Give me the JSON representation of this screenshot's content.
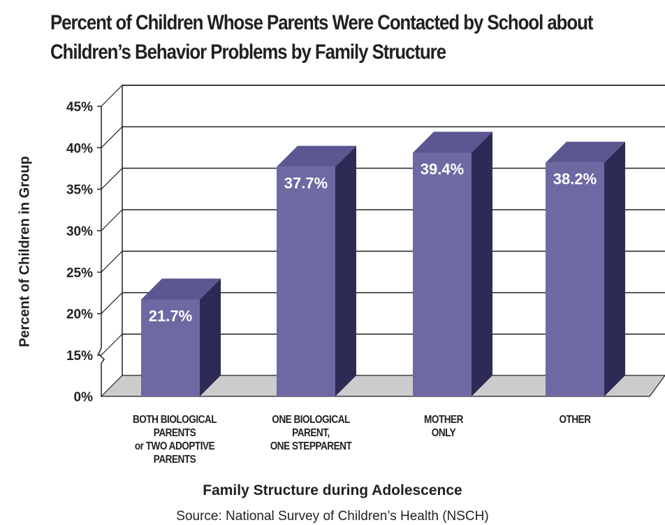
{
  "chart_data": {
    "type": "bar",
    "title": [
      "Percent of Children Whose Parents Were Contacted by School about",
      "Children’s  Behavior Problems by Family Structure"
    ],
    "ylabel": "Percent of Children in Group",
    "xlabel": "Family Structure during Adolescence",
    "source": "Source: National Survey of Children’s Health (NSCH)",
    "ylim": [
      0,
      45
    ],
    "yticks": [
      "0%",
      "15%",
      "20%",
      "25%",
      "30%",
      "35%",
      "40%",
      "45%"
    ],
    "axis_break": true,
    "categories": [
      [
        "BOTH BIOLOGICAL",
        "PARENTS",
        "or TWO ADOPTIVE",
        "PARENTS"
      ],
      [
        "ONE BIOLOGICAL",
        "PARENT,",
        "ONE STEPPARENT"
      ],
      [
        "MOTHER",
        "ONLY"
      ],
      [
        "OTHER"
      ]
    ],
    "values": [
      21.7,
      37.7,
      39.4,
      38.2
    ],
    "value_labels": [
      "21.7%",
      "37.7%",
      "39.4%",
      "38.2%"
    ],
    "colors": {
      "bar_front": "#6e69a3",
      "bar_top": "#5b5790",
      "bar_side": "#2d2b55",
      "floor": "#cccccc"
    }
  }
}
